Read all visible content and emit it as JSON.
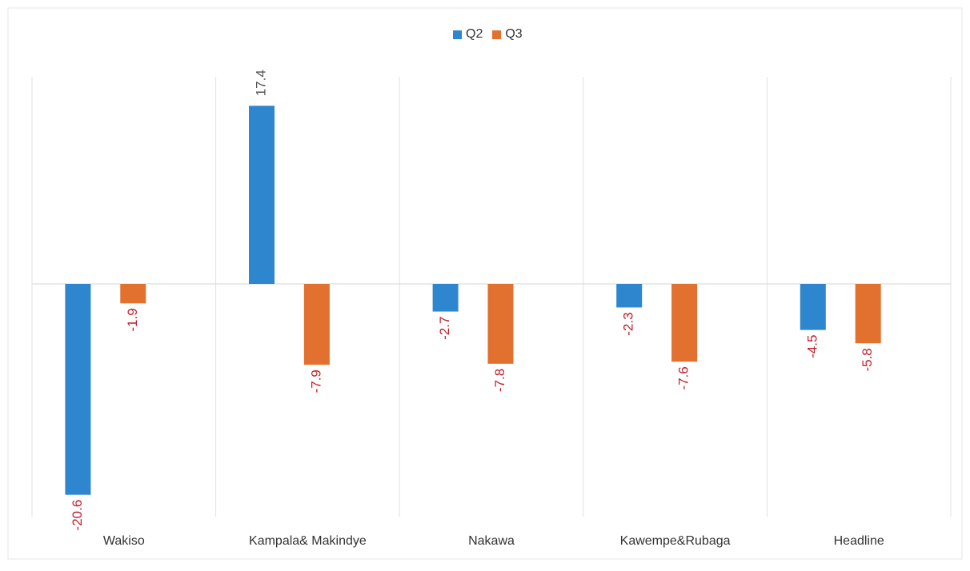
{
  "chart_data": {
    "type": "bar",
    "title": "",
    "xlabel": "",
    "ylabel": "",
    "categories": [
      "Wakiso",
      "Kampala& Makindye",
      "Nakawa",
      "Kawempe&Rubaga",
      "Headline"
    ],
    "series": [
      {
        "name": "Q2",
        "values": [
          -20.6,
          17.4,
          -2.7,
          -2.3,
          -4.5
        ],
        "labels": [
          "-20.6",
          "17.4",
          "-2.7",
          "-2.3",
          "-4.5"
        ],
        "color": "#2e86cf"
      },
      {
        "name": "Q3",
        "values": [
          -1.9,
          -7.9,
          -7.8,
          -7.6,
          -5.8
        ],
        "labels": [
          "-1.9",
          "-7.9",
          "-7.8",
          "-7.6",
          "-5.8"
        ],
        "color": "#e2702f"
      }
    ],
    "ylim": [
      -22.5,
      19
    ],
    "grid": true,
    "legend": "top-center",
    "label_colors": {
      "positive": "#555555",
      "negative": "#c0202a"
    }
  }
}
